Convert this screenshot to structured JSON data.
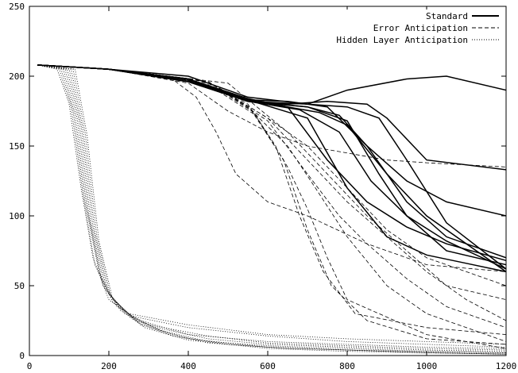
{
  "chart_data": {
    "type": "line",
    "title": "",
    "xlabel": "",
    "ylabel": "",
    "xlim": [
      0,
      1200
    ],
    "ylim": [
      0,
      250
    ],
    "x_ticks": [
      0,
      200,
      400,
      600,
      800,
      1000,
      1200
    ],
    "y_ticks": [
      0,
      50,
      100,
      150,
      200,
      250
    ],
    "grid": false,
    "legend_position": "top-right",
    "legend": [
      {
        "label": "Standard",
        "style": "solid"
      },
      {
        "label": "Error Anticipation",
        "style": "dashed"
      },
      {
        "label": "Hidden Layer Anticipation",
        "style": "dotted"
      }
    ],
    "series": [
      {
        "group": "Standard",
        "style": "solid",
        "x": [
          20,
          200,
          400,
          550,
          700,
          800,
          950,
          1050,
          1200
        ],
        "y": [
          208,
          205,
          200,
          185,
          180,
          190,
          198,
          200,
          190
        ]
      },
      {
        "group": "Standard",
        "style": "solid",
        "x": [
          20,
          200,
          400,
          550,
          650,
          750,
          850,
          950,
          1050,
          1200
        ],
        "y": [
          208,
          205,
          198,
          183,
          182,
          178,
          150,
          125,
          110,
          100
        ]
      },
      {
        "group": "Standard",
        "style": "solid",
        "x": [
          20,
          200,
          400,
          550,
          650,
          750,
          850,
          900,
          1000,
          1200
        ],
        "y": [
          208,
          205,
          198,
          182,
          180,
          182,
          180,
          170,
          140,
          133
        ]
      },
      {
        "group": "Standard",
        "style": "solid",
        "x": [
          20,
          200,
          400,
          550,
          700,
          780,
          850,
          950,
          1050,
          1200
        ],
        "y": [
          208,
          205,
          197,
          182,
          178,
          172,
          150,
          110,
          85,
          70
        ]
      },
      {
        "group": "Standard",
        "style": "solid",
        "x": [
          20,
          200,
          400,
          550,
          700,
          800,
          880,
          950,
          1050,
          1200
        ],
        "y": [
          208,
          205,
          196,
          182,
          180,
          178,
          170,
          140,
          95,
          62
        ]
      },
      {
        "group": "Standard",
        "style": "solid",
        "x": [
          20,
          200,
          400,
          550,
          650,
          750,
          850,
          950,
          1050,
          1200
        ],
        "y": [
          208,
          205,
          198,
          184,
          178,
          140,
          110,
          92,
          80,
          68
        ]
      },
      {
        "group": "Standard",
        "style": "solid",
        "x": [
          20,
          200,
          400,
          550,
          680,
          780,
          860,
          950,
          1050,
          1200
        ],
        "y": [
          208,
          205,
          196,
          182,
          176,
          160,
          125,
          100,
          82,
          62
        ]
      },
      {
        "group": "Standard",
        "style": "solid",
        "x": [
          20,
          200,
          400,
          550,
          700,
          800,
          900,
          1000,
          1100,
          1200
        ],
        "y": [
          208,
          205,
          198,
          183,
          170,
          120,
          85,
          72,
          66,
          60
        ]
      },
      {
        "group": "Standard",
        "style": "solid",
        "x": [
          20,
          200,
          400,
          550,
          700,
          800,
          880,
          950,
          1050,
          1200
        ],
        "y": [
          208,
          205,
          198,
          182,
          178,
          168,
          130,
          100,
          75,
          65
        ]
      },
      {
        "group": "Standard",
        "style": "solid",
        "x": [
          20,
          200,
          400,
          550,
          650,
          730,
          800,
          900,
          1000,
          1200
        ],
        "y": [
          208,
          205,
          198,
          183,
          178,
          174,
          165,
          130,
          100,
          60
        ]
      },
      {
        "group": "Error Anticipation",
        "style": "dashed",
        "x": [
          20,
          200,
          350,
          420,
          470,
          520,
          600,
          700,
          850,
          1000,
          1200
        ],
        "y": [
          208,
          205,
          200,
          185,
          160,
          130,
          110,
          100,
          80,
          65,
          60
        ]
      },
      {
        "group": "Error Anticipation",
        "style": "dashed",
        "x": [
          20,
          200,
          400,
          500,
          600,
          700,
          800,
          900,
          1000,
          1200
        ],
        "y": [
          208,
          205,
          195,
          175,
          160,
          150,
          145,
          140,
          138,
          135
        ]
      },
      {
        "group": "Error Anticipation",
        "style": "dashed",
        "x": [
          20,
          200,
          450,
          550,
          620,
          680,
          740,
          820,
          1000,
          1200
        ],
        "y": [
          208,
          205,
          196,
          180,
          150,
          100,
          60,
          30,
          20,
          15
        ]
      },
      {
        "group": "Error Anticipation",
        "style": "dashed",
        "x": [
          20,
          200,
          450,
          560,
          640,
          700,
          760,
          850,
          1000,
          1200
        ],
        "y": [
          208,
          205,
          195,
          175,
          140,
          90,
          50,
          25,
          12,
          8
        ]
      },
      {
        "group": "Error Anticipation",
        "style": "dashed",
        "x": [
          20,
          200,
          450,
          570,
          650,
          700,
          750,
          800,
          1000,
          1200
        ],
        "y": [
          208,
          205,
          194,
          172,
          135,
          105,
          70,
          40,
          15,
          5
        ]
      },
      {
        "group": "Error Anticipation",
        "style": "dashed",
        "x": [
          20,
          200,
          450,
          600,
          700,
          780,
          850,
          950,
          1050,
          1200
        ],
        "y": [
          208,
          205,
          196,
          168,
          130,
          100,
          80,
          55,
          35,
          20
        ]
      },
      {
        "group": "Error Anticipation",
        "style": "dashed",
        "x": [
          20,
          200,
          450,
          600,
          700,
          800,
          900,
          1000,
          1100,
          1200
        ],
        "y": [
          208,
          205,
          196,
          170,
          140,
          110,
          85,
          60,
          40,
          25
        ]
      },
      {
        "group": "Error Anticipation",
        "style": "dashed",
        "x": [
          20,
          200,
          500,
          650,
          750,
          850,
          950,
          1050,
          1200
        ],
        "y": [
          208,
          205,
          195,
          160,
          130,
          100,
          75,
          50,
          40
        ]
      },
      {
        "group": "Error Anticipation",
        "style": "dashed",
        "x": [
          20,
          200,
          450,
          600,
          700,
          800,
          900,
          1000,
          1200
        ],
        "y": [
          208,
          205,
          196,
          170,
          150,
          120,
          90,
          70,
          50
        ]
      },
      {
        "group": "Error Anticipation",
        "style": "dashed",
        "x": [
          20,
          200,
          450,
          550,
          650,
          720,
          800,
          900,
          1000,
          1200
        ],
        "y": [
          208,
          205,
          196,
          178,
          150,
          120,
          85,
          50,
          30,
          10
        ]
      },
      {
        "group": "Hidden Layer Anticipation",
        "style": "dotted",
        "x": [
          20,
          70,
          100,
          130,
          160,
          200,
          250,
          400,
          600,
          800,
          1000,
          1200
        ],
        "y": [
          208,
          205,
          180,
          120,
          70,
          40,
          30,
          22,
          15,
          12,
          10,
          8
        ]
      },
      {
        "group": "Hidden Layer Anticipation",
        "style": "dotted",
        "x": [
          20,
          75,
          105,
          135,
          165,
          210,
          260,
          400,
          600,
          800,
          1000,
          1200
        ],
        "y": [
          208,
          205,
          178,
          115,
          65,
          38,
          28,
          20,
          14,
          10,
          8,
          6
        ]
      },
      {
        "group": "Hidden Layer Anticipation",
        "style": "dotted",
        "x": [
          20,
          80,
          110,
          140,
          175,
          220,
          280,
          400,
          600,
          800,
          1000,
          1200
        ],
        "y": [
          208,
          205,
          175,
          110,
          60,
          35,
          25,
          15,
          10,
          8,
          6,
          5
        ]
      },
      {
        "group": "Hidden Layer Anticipation",
        "style": "dotted",
        "x": [
          20,
          85,
          115,
          145,
          180,
          230,
          300,
          450,
          600,
          800,
          1000,
          1200
        ],
        "y": [
          208,
          205,
          172,
          105,
          55,
          32,
          22,
          14,
          9,
          7,
          5,
          4
        ]
      },
      {
        "group": "Hidden Layer Anticipation",
        "style": "dotted",
        "x": [
          20,
          90,
          120,
          150,
          185,
          240,
          320,
          450,
          600,
          800,
          1000,
          1200
        ],
        "y": [
          208,
          205,
          170,
          100,
          50,
          30,
          20,
          12,
          8,
          6,
          4,
          3
        ]
      },
      {
        "group": "Hidden Layer Anticipation",
        "style": "dotted",
        "x": [
          20,
          95,
          125,
          155,
          190,
          250,
          330,
          450,
          600,
          800,
          1000,
          1200
        ],
        "y": [
          208,
          205,
          168,
          95,
          48,
          28,
          18,
          10,
          7,
          5,
          3,
          2
        ]
      },
      {
        "group": "Hidden Layer Anticipation",
        "style": "dotted",
        "x": [
          20,
          100,
          130,
          160,
          195,
          260,
          350,
          450,
          600,
          800,
          1000,
          1200
        ],
        "y": [
          208,
          205,
          165,
          92,
          46,
          26,
          16,
          9,
          6,
          4,
          3,
          2
        ]
      },
      {
        "group": "Hidden Layer Anticipation",
        "style": "dotted",
        "x": [
          20,
          105,
          135,
          165,
          200,
          270,
          360,
          500,
          650,
          800,
          1000,
          1200
        ],
        "y": [
          208,
          205,
          162,
          88,
          44,
          24,
          14,
          8,
          5,
          4,
          2,
          1
        ]
      },
      {
        "group": "Hidden Layer Anticipation",
        "style": "dotted",
        "x": [
          20,
          110,
          140,
          170,
          205,
          280,
          400,
          600,
          800,
          1000,
          1200
        ],
        "y": [
          208,
          205,
          160,
          85,
          42,
          22,
          12,
          6,
          4,
          2,
          1
        ]
      },
      {
        "group": "Hidden Layer Anticipation",
        "style": "dotted",
        "x": [
          20,
          115,
          145,
          175,
          210,
          290,
          400,
          600,
          800,
          1000,
          1200
        ],
        "y": [
          208,
          205,
          158,
          82,
          40,
          20,
          11,
          5,
          3,
          2,
          1
        ]
      }
    ]
  }
}
